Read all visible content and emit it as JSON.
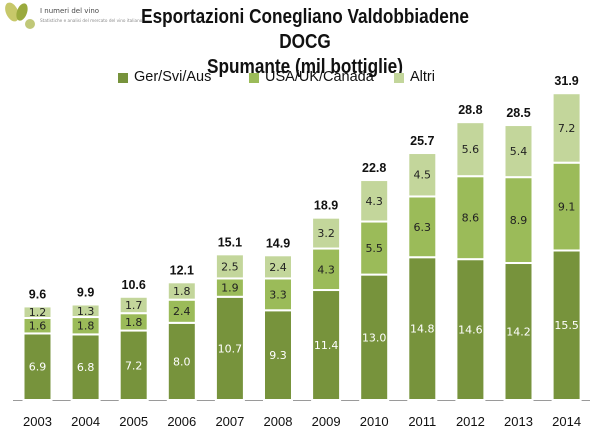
{
  "logo": {
    "name": "I numeri del vino",
    "tagline": "Statistiche e analisi del mercato del vino italiano"
  },
  "colors": {
    "ger_svi_aus": "#77933c",
    "usa_uk_canada": "#9bbb59",
    "altri": "#c3d69b",
    "bar_border": "#ffffff",
    "axis": "#9a9a9a"
  },
  "chart_data": {
    "type": "bar",
    "stacked": true,
    "title": "Esportazioni Conegliano Valdobbiadene DOCG",
    "subtitle": "Spumante (mil bottiglie)",
    "xlabel": "",
    "ylabel": "",
    "categories": [
      "2003",
      "2004",
      "2005",
      "2006",
      "2007",
      "2008",
      "2009",
      "2010",
      "2011",
      "2012",
      "2013",
      "2014"
    ],
    "series": [
      {
        "name": "Ger/Svi/Aus",
        "values": [
          "6.9",
          "6.8",
          "7.2",
          "8.0",
          "10.7",
          "9.3",
          "11.4",
          "13.0",
          "14.8",
          "14.6",
          "14.2",
          "15.5"
        ]
      },
      {
        "name": "USA/UK/Canada",
        "values": [
          "1.6",
          "1.8",
          "1.8",
          "2.4",
          "1.9",
          "3.3",
          "4.3",
          "5.5",
          "6.3",
          "8.6",
          "8.9",
          "9.1"
        ]
      },
      {
        "name": "Altri",
        "values": [
          "1.2",
          "1.3",
          "1.7",
          "1.8",
          "2.5",
          "2.4",
          "3.2",
          "4.3",
          "4.5",
          "5.6",
          "5.4",
          "7.2"
        ]
      }
    ],
    "totals": [
      "9.6",
      "9.9",
      "10.6",
      "12.1",
      "15.1",
      "14.9",
      "18.9",
      "22.8",
      "25.7",
      "28.8",
      "28.5",
      "31.9"
    ],
    "ylim": [
      0,
      34
    ],
    "grid": false,
    "legend": "top-center"
  }
}
